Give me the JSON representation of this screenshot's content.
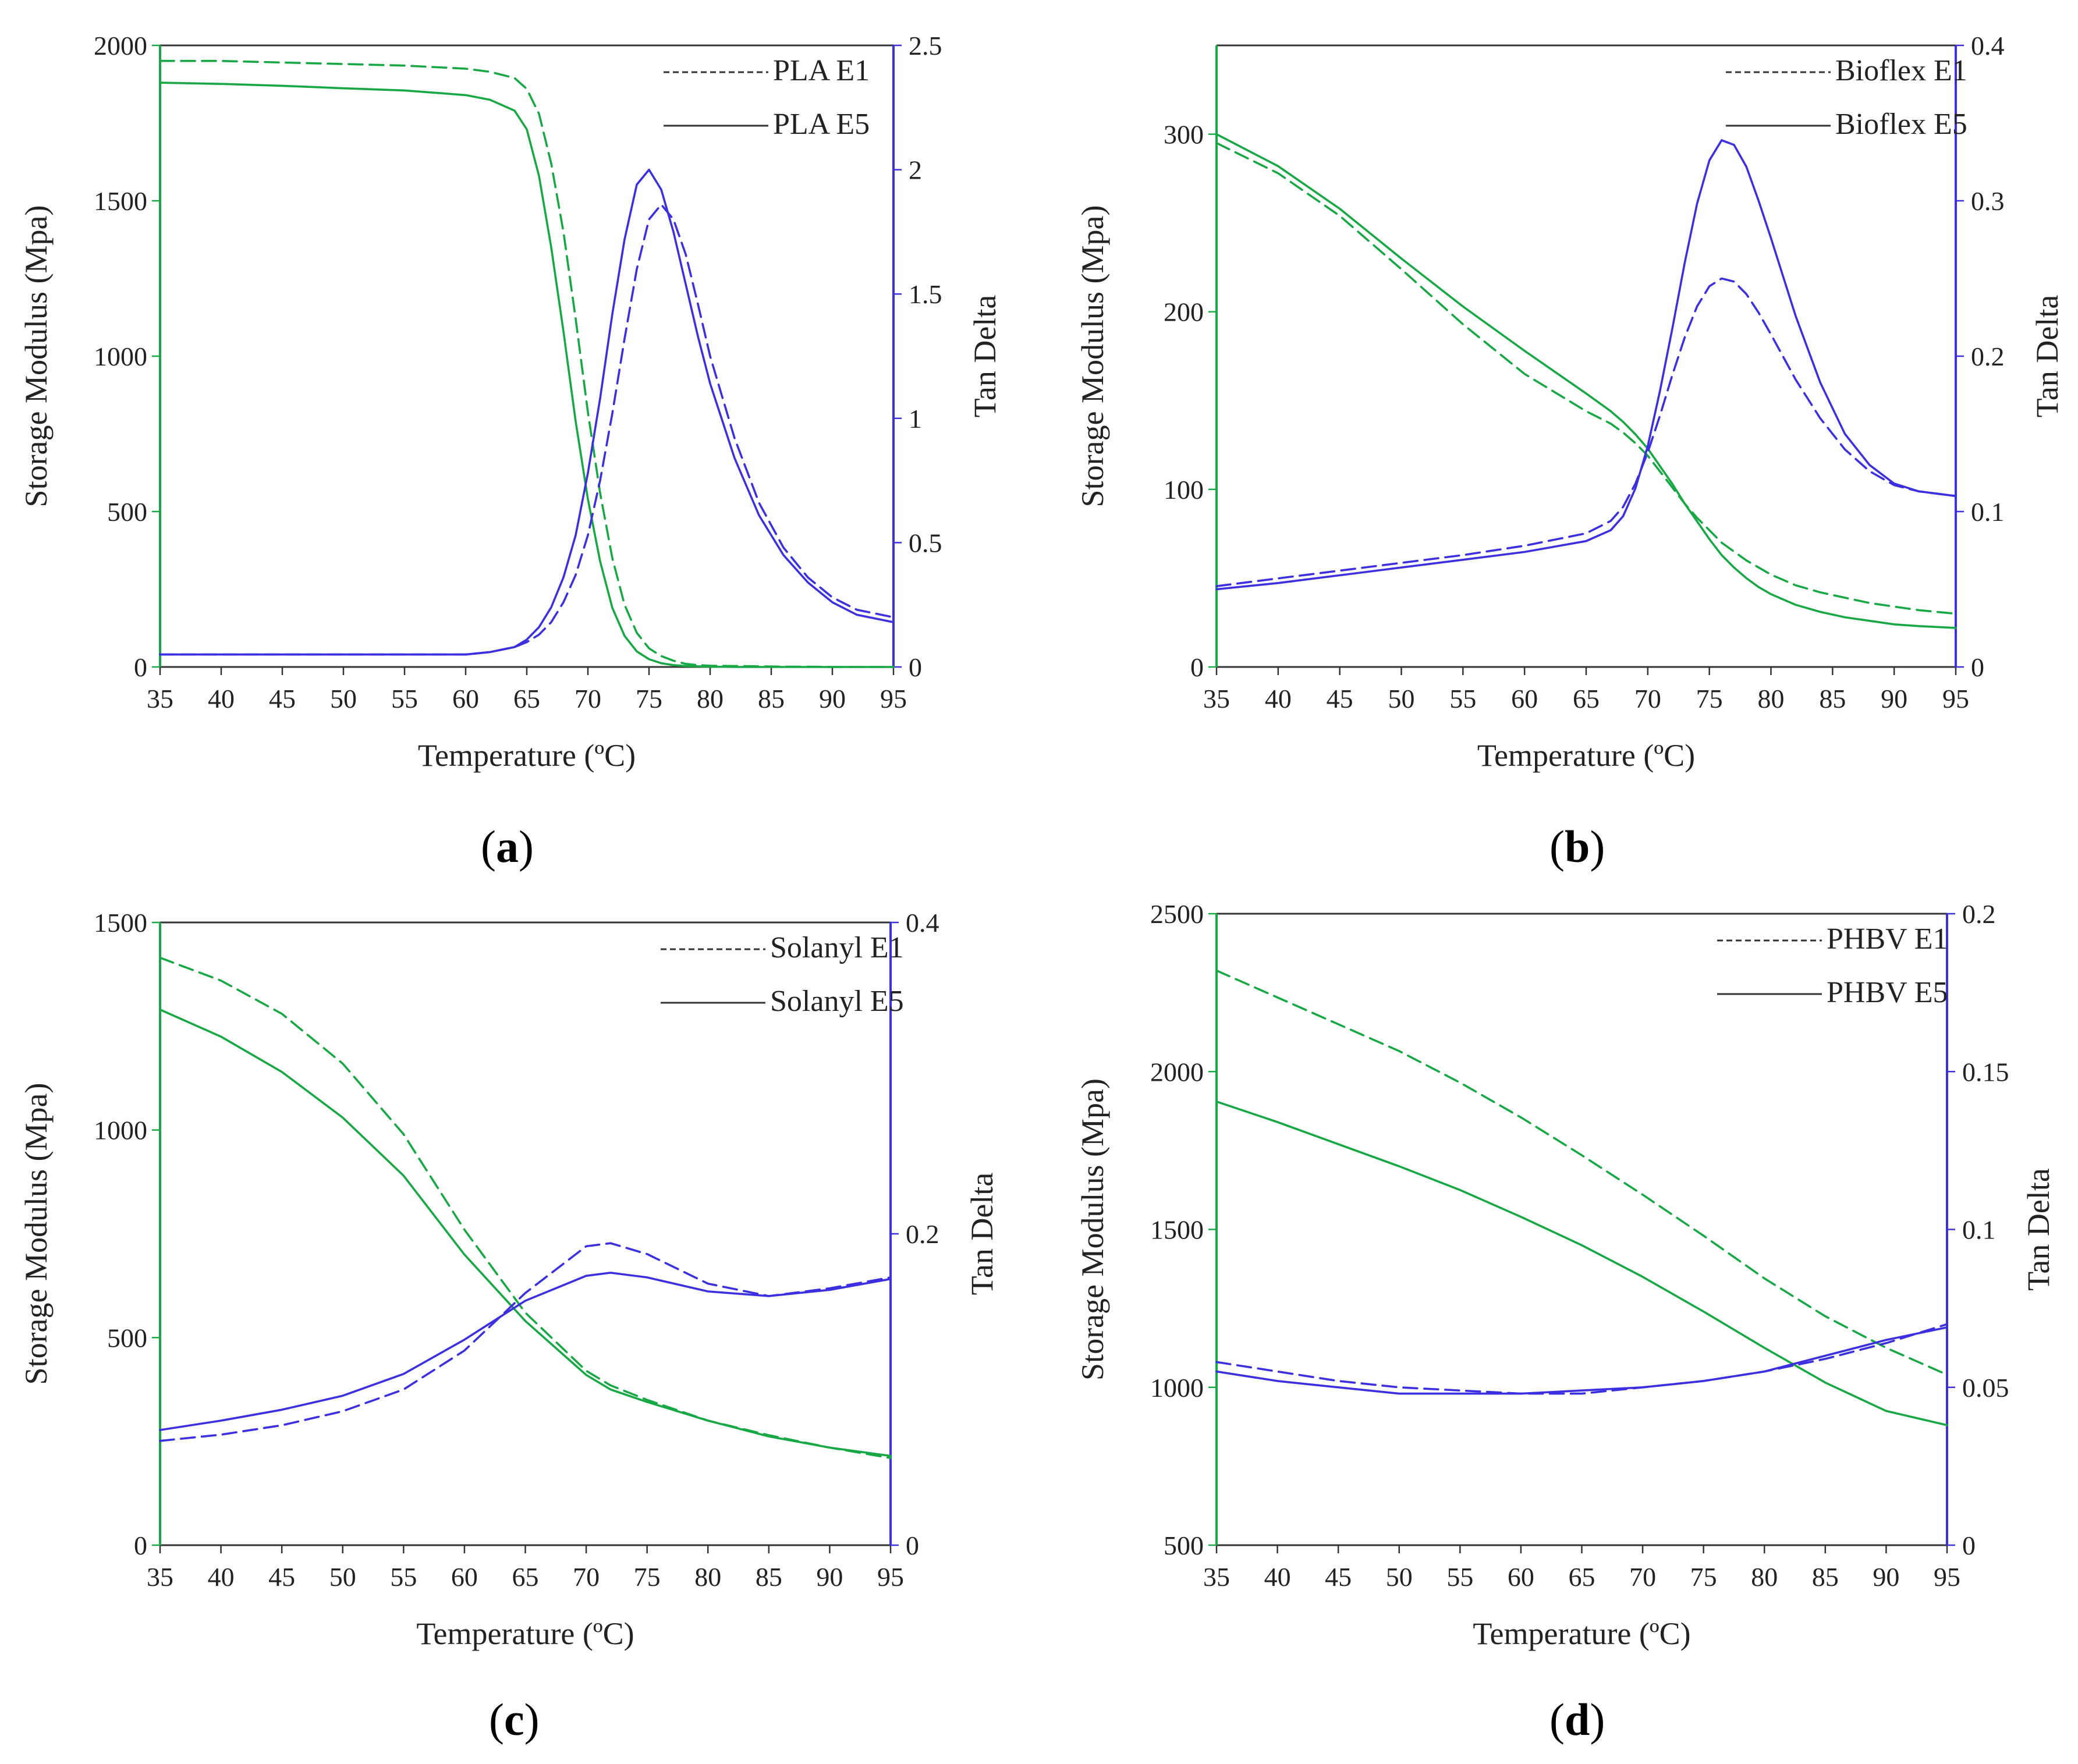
{
  "figure": {
    "captions": [
      {
        "open": "(",
        "letter": "a",
        "close": ")"
      },
      {
        "open": "(",
        "letter": "b",
        "close": ")"
      },
      {
        "open": "(",
        "letter": "c",
        "close": ")"
      },
      {
        "open": "(",
        "letter": "d",
        "close": ")"
      }
    ]
  },
  "colors": {
    "storage_modulus": "#17a845",
    "tan_delta": "#3b2fe0",
    "axis": "#000000"
  },
  "chart_data": [
    {
      "type": "line",
      "id": "a",
      "xlabel": "Temperature (ºC)",
      "ylabel": "Storage Modulus (Mpa)",
      "y2label": "Tan Delta",
      "xlim": [
        35,
        95
      ],
      "ylim": [
        0,
        2000
      ],
      "y2lim": [
        0,
        2.5
      ],
      "x_ticks": [
        "35",
        "40",
        "45",
        "50",
        "55",
        "60",
        "65",
        "70",
        "75",
        "80",
        "85",
        "90",
        "95"
      ],
      "y_ticks": [
        "0",
        "500",
        "1000",
        "1500",
        "2000"
      ],
      "y2_ticks": [
        "0",
        "0.5",
        "1",
        "1.5",
        "2",
        "2.5"
      ],
      "legend": [
        {
          "label": "PLA E1",
          "style": "dashed"
        },
        {
          "label": "PLA E5",
          "style": "solid"
        }
      ],
      "x": [
        35,
        40,
        45,
        50,
        55,
        60,
        62,
        64,
        65,
        66,
        67,
        68,
        69,
        70,
        71,
        72,
        73,
        74,
        75,
        76,
        77,
        78,
        79,
        80,
        82,
        84,
        86,
        88,
        90,
        92,
        95
      ],
      "series": [
        {
          "name": "PLA E1 Storage Modulus",
          "axis": "left",
          "style": "dashed",
          "values": [
            1950,
            1950,
            1945,
            1940,
            1935,
            1925,
            1915,
            1895,
            1860,
            1780,
            1620,
            1400,
            1120,
            820,
            560,
            350,
            200,
            110,
            60,
            35,
            20,
            10,
            6,
            4,
            3,
            2,
            1,
            1,
            0,
            0,
            0
          ]
        },
        {
          "name": "PLA E5 Storage Modulus",
          "axis": "left",
          "style": "solid",
          "values": [
            1880,
            1876,
            1870,
            1862,
            1855,
            1840,
            1825,
            1790,
            1730,
            1580,
            1350,
            1080,
            790,
            540,
            340,
            190,
            100,
            50,
            25,
            12,
            6,
            3,
            2,
            1,
            0,
            0,
            0,
            0,
            0,
            0,
            0
          ]
        },
        {
          "name": "PLA E1 Tan Delta",
          "axis": "right",
          "style": "dashed",
          "values": [
            0.05,
            0.05,
            0.05,
            0.05,
            0.05,
            0.05,
            0.06,
            0.08,
            0.1,
            0.13,
            0.18,
            0.26,
            0.37,
            0.53,
            0.75,
            1.02,
            1.32,
            1.6,
            1.8,
            1.86,
            1.8,
            1.66,
            1.46,
            1.25,
            0.92,
            0.66,
            0.48,
            0.36,
            0.28,
            0.23,
            0.2
          ]
        },
        {
          "name": "PLA E5 Tan Delta",
          "axis": "right",
          "style": "solid",
          "values": [
            0.05,
            0.05,
            0.05,
            0.05,
            0.05,
            0.05,
            0.06,
            0.08,
            0.11,
            0.16,
            0.24,
            0.36,
            0.53,
            0.78,
            1.08,
            1.42,
            1.72,
            1.94,
            2.0,
            1.92,
            1.75,
            1.54,
            1.33,
            1.14,
            0.84,
            0.61,
            0.45,
            0.34,
            0.26,
            0.21,
            0.18
          ]
        }
      ]
    },
    {
      "type": "line",
      "id": "b",
      "xlabel": "Temperature (ºC)",
      "ylabel": "Storage Modulus (Mpa)",
      "y2label": "Tan Delta",
      "xlim": [
        35,
        95
      ],
      "ylim": [
        0,
        350
      ],
      "y2lim": [
        0,
        0.4
      ],
      "x_ticks": [
        "35",
        "40",
        "45",
        "50",
        "55",
        "60",
        "65",
        "70",
        "75",
        "80",
        "85",
        "90",
        "95"
      ],
      "y_ticks": [
        "0",
        "100",
        "200",
        "300"
      ],
      "y2_ticks": [
        "0",
        "0.1",
        "0.2",
        "0.3",
        "0.4"
      ],
      "legend": [
        {
          "label": "Bioflex E1",
          "style": "dashed"
        },
        {
          "label": "Bioflex E5",
          "style": "solid"
        }
      ],
      "x": [
        35,
        40,
        45,
        50,
        55,
        60,
        65,
        67,
        68,
        69,
        70,
        71,
        72,
        73,
        74,
        75,
        76,
        77,
        78,
        79,
        80,
        82,
        84,
        86,
        88,
        90,
        92,
        95
      ],
      "series": [
        {
          "name": "Bioflex E1 Storage Modulus",
          "axis": "left",
          "style": "dashed",
          "values": [
            295,
            278,
            254,
            224,
            193,
            165,
            144,
            137,
            132,
            126,
            119,
            110,
            101,
            92,
            84,
            77,
            70,
            65,
            60,
            56,
            52,
            46,
            42,
            39,
            36,
            34,
            32,
            30
          ]
        },
        {
          "name": "Bioflex E5 Storage Modulus",
          "axis": "left",
          "style": "solid",
          "values": [
            300,
            282,
            258,
            230,
            203,
            178,
            154,
            144,
            138,
            131,
            123,
            113,
            103,
            92,
            82,
            72,
            63,
            56,
            50,
            45,
            41,
            35,
            31,
            28,
            26,
            24,
            23,
            22
          ]
        },
        {
          "name": "Bioflex E1 Tan Delta",
          "axis": "right",
          "style": "dashed",
          "values": [
            0.052,
            0.057,
            0.062,
            0.067,
            0.072,
            0.078,
            0.086,
            0.094,
            0.103,
            0.118,
            0.138,
            0.162,
            0.188,
            0.212,
            0.232,
            0.245,
            0.25,
            0.248,
            0.24,
            0.228,
            0.214,
            0.185,
            0.16,
            0.14,
            0.126,
            0.117,
            0.113,
            0.11
          ]
        },
        {
          "name": "Bioflex E5 Tan Delta",
          "axis": "right",
          "style": "solid",
          "values": [
            0.05,
            0.054,
            0.059,
            0.064,
            0.069,
            0.074,
            0.081,
            0.088,
            0.097,
            0.115,
            0.142,
            0.178,
            0.218,
            0.26,
            0.298,
            0.326,
            0.339,
            0.336,
            0.322,
            0.3,
            0.276,
            0.226,
            0.183,
            0.15,
            0.13,
            0.118,
            0.113,
            0.11
          ]
        }
      ]
    },
    {
      "type": "line",
      "id": "c",
      "xlabel": "Temperature (ºC)",
      "ylabel": "Storage Modulus (Mpa)",
      "y2label": "Tan Delta",
      "xlim": [
        35,
        95
      ],
      "ylim": [
        0,
        1500
      ],
      "y2lim": [
        0,
        0.4
      ],
      "x_ticks": [
        "35",
        "40",
        "45",
        "50",
        "55",
        "60",
        "65",
        "70",
        "75",
        "80",
        "85",
        "90",
        "95"
      ],
      "y_ticks": [
        "0",
        "500",
        "1000",
        "1500"
      ],
      "y2_ticks": [
        "0",
        "0.2",
        "0.4"
      ],
      "legend": [
        {
          "label": "Solanyl E1",
          "style": "dashed"
        },
        {
          "label": "Solanyl E5",
          "style": "solid"
        }
      ],
      "x": [
        35,
        40,
        45,
        50,
        55,
        60,
        65,
        70,
        72,
        75,
        80,
        85,
        90,
        95
      ],
      "series": [
        {
          "name": "Solanyl E1 Storage Modulus",
          "axis": "left",
          "style": "dashed",
          "values": [
            1415,
            1360,
            1280,
            1160,
            990,
            760,
            560,
            420,
            385,
            350,
            300,
            265,
            235,
            210
          ]
        },
        {
          "name": "Solanyl E5 Storage Modulus",
          "axis": "left",
          "style": "solid",
          "values": [
            1290,
            1225,
            1140,
            1030,
            890,
            700,
            540,
            410,
            375,
            345,
            300,
            262,
            235,
            215
          ]
        },
        {
          "name": "Solanyl E1 Tan Delta",
          "axis": "right",
          "style": "dashed",
          "values": [
            0.067,
            0.071,
            0.077,
            0.086,
            0.1,
            0.125,
            0.162,
            0.192,
            0.194,
            0.187,
            0.168,
            0.16,
            0.165,
            0.172
          ]
        },
        {
          "name": "Solanyl E5 Tan Delta",
          "axis": "right",
          "style": "solid",
          "values": [
            0.074,
            0.08,
            0.087,
            0.096,
            0.11,
            0.132,
            0.157,
            0.173,
            0.175,
            0.172,
            0.163,
            0.16,
            0.164,
            0.171
          ]
        }
      ]
    },
    {
      "type": "line",
      "id": "d",
      "xlabel": "Temperature (ºC)",
      "ylabel": "Storage Modulus (Mpa)",
      "y2label": "Tan Delta",
      "xlim": [
        35,
        95
      ],
      "ylim": [
        500,
        2500
      ],
      "y2lim": [
        0,
        0.2
      ],
      "x_ticks": [
        "35",
        "40",
        "45",
        "50",
        "55",
        "60",
        "65",
        "70",
        "75",
        "80",
        "85",
        "90",
        "95"
      ],
      "y_ticks": [
        "500",
        "1000",
        "1500",
        "2000",
        "2500"
      ],
      "y2_ticks": [
        "0",
        "0.05",
        "0.1",
        "0.15",
        "0.2"
      ],
      "legend": [
        {
          "label": "PHBV E1",
          "style": "dashed"
        },
        {
          "label": "PHBV E5",
          "style": "solid"
        }
      ],
      "x": [
        35,
        40,
        45,
        50,
        55,
        60,
        65,
        70,
        75,
        80,
        85,
        90,
        95
      ],
      "series": [
        {
          "name": "PHBV E1 Storage Modulus",
          "axis": "left",
          "style": "dashed",
          "values": [
            2320,
            2235,
            2150,
            2065,
            1965,
            1855,
            1735,
            1610,
            1480,
            1345,
            1225,
            1125,
            1040
          ]
        },
        {
          "name": "PHBV E5 Storage Modulus",
          "axis": "left",
          "style": "solid",
          "values": [
            1905,
            1840,
            1770,
            1700,
            1625,
            1540,
            1450,
            1350,
            1240,
            1125,
            1015,
            925,
            880
          ]
        },
        {
          "name": "PHBV E1 Tan Delta",
          "axis": "right",
          "style": "dashed",
          "values": [
            0.058,
            0.055,
            0.052,
            0.05,
            0.049,
            0.048,
            0.048,
            0.05,
            0.052,
            0.055,
            0.059,
            0.064,
            0.07
          ]
        },
        {
          "name": "PHBV E5 Tan Delta",
          "axis": "right",
          "style": "solid",
          "values": [
            0.055,
            0.052,
            0.05,
            0.048,
            0.048,
            0.048,
            0.049,
            0.05,
            0.052,
            0.055,
            0.06,
            0.065,
            0.069
          ]
        }
      ]
    }
  ]
}
